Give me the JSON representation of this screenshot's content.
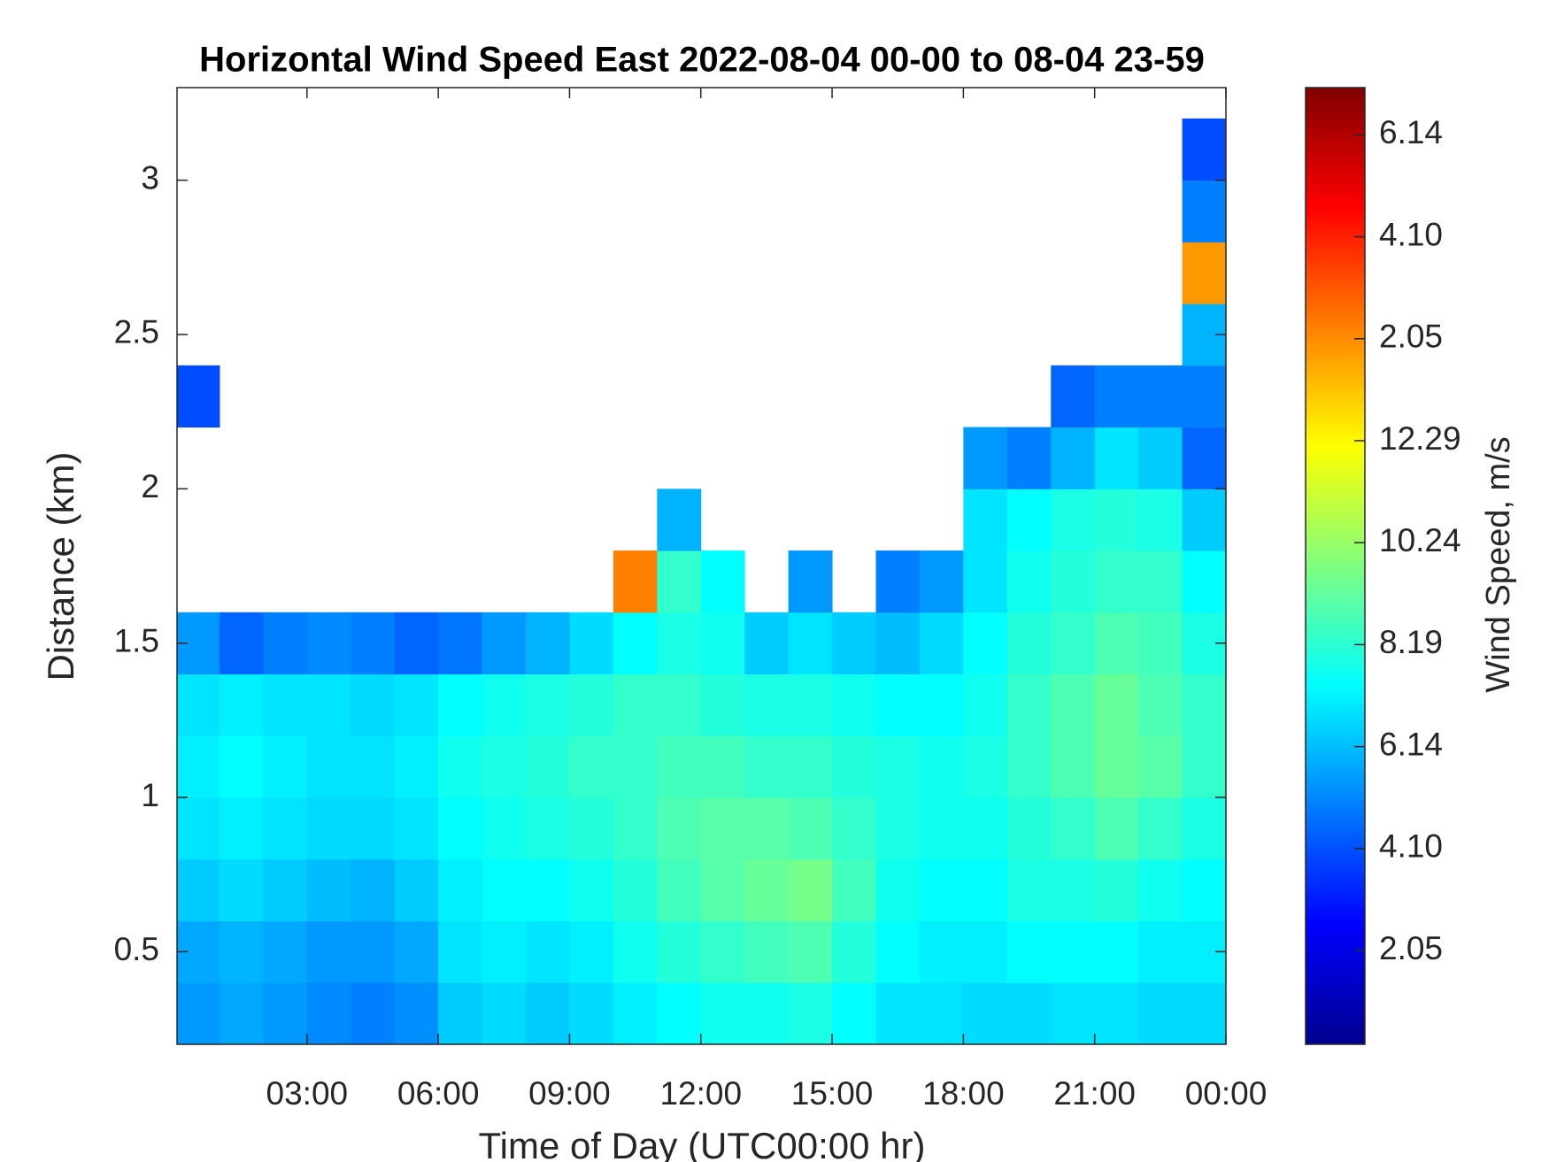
{
  "chart_data": {
    "type": "heatmap",
    "title": "Horizontal Wind Speed East 2022-08-04 00-00 to 08-04 23-59",
    "x_label": "Time of Day (UTC00:00 hr)",
    "y_label": "Distance (km)",
    "colorbar_label": "Wind Speed, m/s",
    "xlim": [
      0.03,
      24
    ],
    "ylim": [
      0.2,
      3.3
    ],
    "clim": [
      0,
      20
    ],
    "xticks": [
      {
        "value": 3,
        "label": "03:00"
      },
      {
        "value": 6,
        "label": "06:00"
      },
      {
        "value": 9,
        "label": "09:00"
      },
      {
        "value": 12,
        "label": "12:00"
      },
      {
        "value": 15,
        "label": "15:00"
      },
      {
        "value": 18,
        "label": "18:00"
      },
      {
        "value": 21,
        "label": "21:00"
      },
      {
        "value": 24,
        "label": "00:00"
      }
    ],
    "yticks": [
      0.5,
      1,
      1.5,
      2,
      2.5,
      3
    ],
    "colorbar_ticks": [
      2.05,
      {
        "value": 4.1,
        "label": "4.10"
      },
      6.14,
      8.19,
      10.24,
      12.29,
      2.05,
      {
        "value": 4.1,
        "label": "4.10"
      },
      6.14
    ],
    "x": [
      0.5,
      1.5,
      2.5,
      3.5,
      4.5,
      5.5,
      6.5,
      7.5,
      8.5,
      9.5,
      10.5,
      11.5,
      12.5,
      13.5,
      14.5,
      15.5,
      16.5,
      17.5,
      18.5,
      19.5,
      20.5,
      21.5,
      22.5,
      23.5
    ],
    "y": [
      0.3,
      0.5,
      0.7,
      0.9,
      1.1,
      1.3,
      1.5,
      1.7,
      1.9,
      2.1,
      2.3,
      2.5,
      2.7,
      2.9,
      3.1
    ],
    "values": [
      [
        5.5,
        5.8,
        5.5,
        5.2,
        5.0,
        5.3,
        6.5,
        6.8,
        6.5,
        6.8,
        7.2,
        7.5,
        7.8,
        7.8,
        8.0,
        7.5,
        7.0,
        7.0,
        6.8,
        6.8,
        7.0,
        7.0,
        6.8,
        6.8
      ],
      [
        5.8,
        6.0,
        5.8,
        5.5,
        5.5,
        5.8,
        7.0,
        7.2,
        7.0,
        7.2,
        7.8,
        8.2,
        8.5,
        8.8,
        9.0,
        8.2,
        7.5,
        7.2,
        7.2,
        7.5,
        7.5,
        7.5,
        7.2,
        7.2
      ],
      [
        6.5,
        6.8,
        6.5,
        6.2,
        6.0,
        6.5,
        7.2,
        7.5,
        7.5,
        7.8,
        8.2,
        8.8,
        9.2,
        9.5,
        9.8,
        8.8,
        7.8,
        7.5,
        7.5,
        8.0,
        8.0,
        8.2,
        7.8,
        7.5
      ],
      [
        7.0,
        7.2,
        7.0,
        6.8,
        6.8,
        7.0,
        7.5,
        7.8,
        8.0,
        8.2,
        8.5,
        9.0,
        9.2,
        9.2,
        9.0,
        8.5,
        8.0,
        7.8,
        7.8,
        8.2,
        8.5,
        9.0,
        8.5,
        8.0
      ],
      [
        7.2,
        7.5,
        7.2,
        7.0,
        7.0,
        7.2,
        7.8,
        8.0,
        8.2,
        8.5,
        8.5,
        8.8,
        8.8,
        8.5,
        8.5,
        8.2,
        8.0,
        7.8,
        8.0,
        8.5,
        9.0,
        9.5,
        9.2,
        8.5
      ],
      [
        7.0,
        7.2,
        7.0,
        7.0,
        6.8,
        7.0,
        7.5,
        7.8,
        8.0,
        8.2,
        8.5,
        8.5,
        8.2,
        8.0,
        8.0,
        7.8,
        7.5,
        7.5,
        7.8,
        8.5,
        9.0,
        9.5,
        9.0,
        8.5
      ],
      [
        5.5,
        4.5,
        5.0,
        5.2,
        5.0,
        4.5,
        4.8,
        5.5,
        6.0,
        6.8,
        7.5,
        8.0,
        7.8,
        6.5,
        7.0,
        6.5,
        6.2,
        6.8,
        7.5,
        8.2,
        8.5,
        9.0,
        8.8,
        8.0
      ],
      [
        null,
        null,
        null,
        null,
        null,
        null,
        null,
        null,
        null,
        null,
        15.0,
        8.5,
        7.5,
        null,
        5.5,
        null,
        5.0,
        5.5,
        7.0,
        7.8,
        8.2,
        8.5,
        8.5,
        7.5
      ],
      [
        null,
        null,
        null,
        null,
        null,
        null,
        null,
        null,
        null,
        null,
        null,
        6.0,
        null,
        null,
        null,
        null,
        null,
        null,
        7.0,
        7.5,
        8.0,
        8.2,
        8.0,
        6.5
      ],
      [
        null,
        null,
        null,
        null,
        null,
        null,
        null,
        null,
        null,
        null,
        null,
        null,
        null,
        null,
        null,
        null,
        null,
        null,
        5.5,
        5.0,
        6.0,
        7.0,
        6.5,
        4.5
      ],
      [
        4.0,
        null,
        null,
        null,
        null,
        null,
        null,
        null,
        null,
        null,
        null,
        null,
        null,
        null,
        null,
        null,
        null,
        null,
        null,
        null,
        4.5,
        5.0,
        5.0,
        5.0
      ],
      [
        null,
        null,
        null,
        null,
        null,
        null,
        null,
        null,
        null,
        null,
        null,
        null,
        null,
        null,
        null,
        null,
        null,
        null,
        null,
        null,
        null,
        null,
        null,
        6.0
      ],
      [
        null,
        null,
        null,
        null,
        null,
        null,
        null,
        null,
        null,
        null,
        null,
        null,
        null,
        null,
        null,
        null,
        null,
        null,
        null,
        null,
        null,
        null,
        null,
        14.5
      ],
      [
        null,
        null,
        null,
        null,
        null,
        null,
        null,
        null,
        null,
        null,
        null,
        null,
        null,
        null,
        null,
        null,
        null,
        null,
        null,
        null,
        null,
        null,
        null,
        5.0
      ],
      [
        null,
        null,
        null,
        null,
        null,
        null,
        null,
        null,
        null,
        null,
        null,
        null,
        null,
        null,
        null,
        null,
        null,
        null,
        null,
        null,
        null,
        null,
        null,
        4.0
      ]
    ]
  }
}
